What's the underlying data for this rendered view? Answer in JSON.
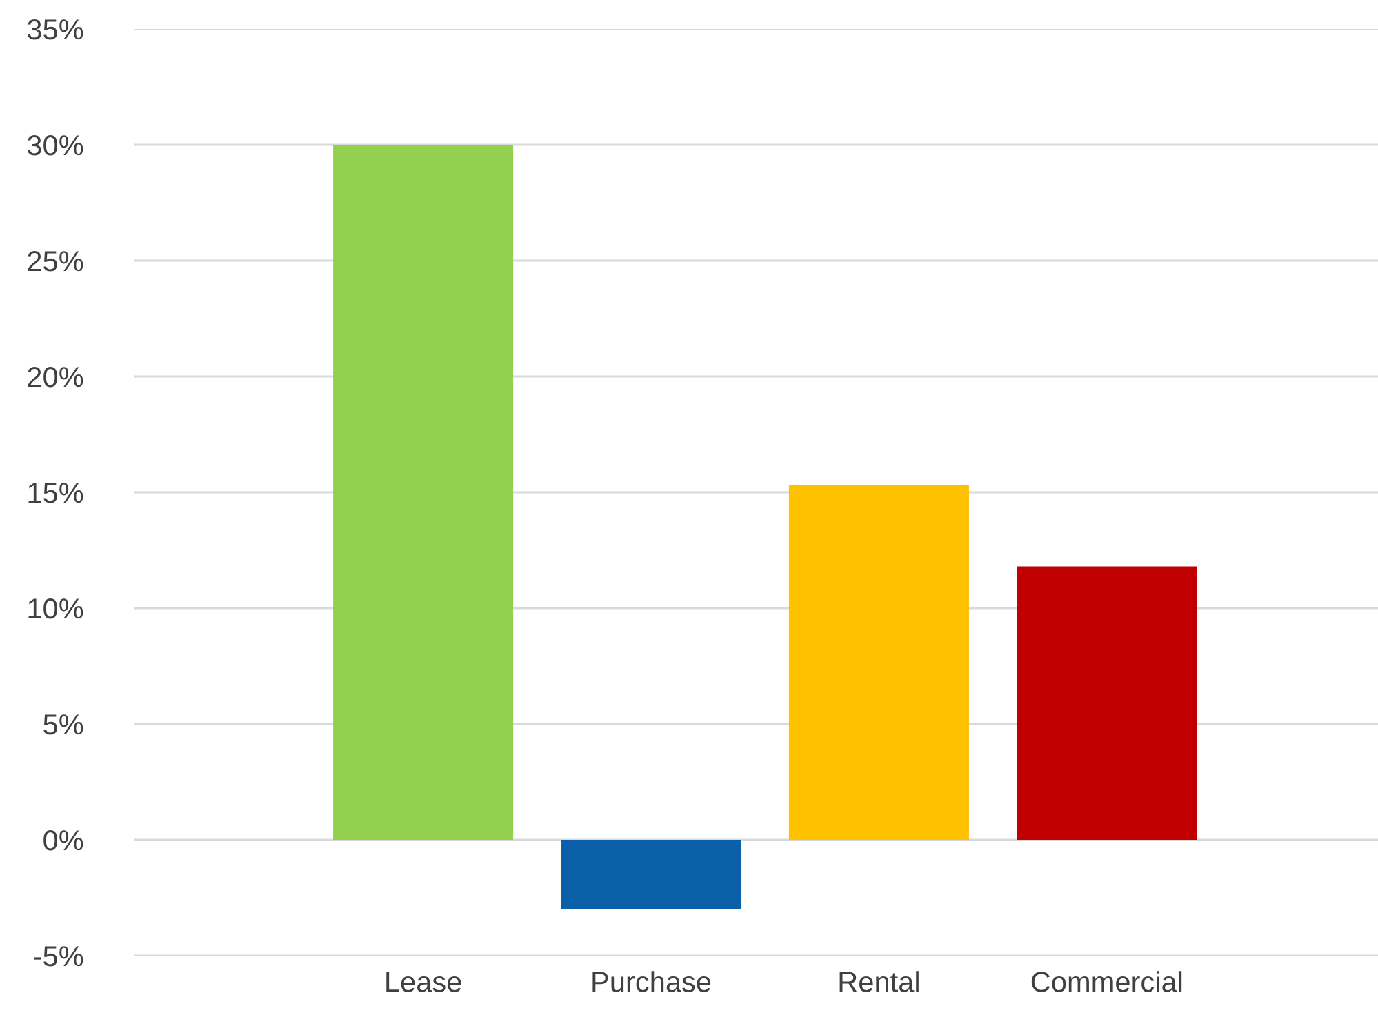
{
  "chart_data": {
    "type": "bar",
    "categories": [
      "Lease",
      "Purchase",
      "Rental",
      "Commercial"
    ],
    "values": [
      30,
      -3,
      15.3,
      11.8
    ],
    "colors": [
      "#92d050",
      "#0a5fa8",
      "#ffc000",
      "#c00000"
    ],
    "ylim": [
      -5,
      35
    ],
    "yticks": [
      {
        "value": -5,
        "label": "-5%"
      },
      {
        "value": 0,
        "label": "0%"
      },
      {
        "value": 5,
        "label": "5%"
      },
      {
        "value": 10,
        "label": "10%"
      },
      {
        "value": 15,
        "label": "15%"
      },
      {
        "value": 20,
        "label": "20%"
      },
      {
        "value": 25,
        "label": "25%"
      },
      {
        "value": 30,
        "label": "30%"
      },
      {
        "value": 35,
        "label": "35%"
      }
    ],
    "grid": "y",
    "legend": false
  }
}
